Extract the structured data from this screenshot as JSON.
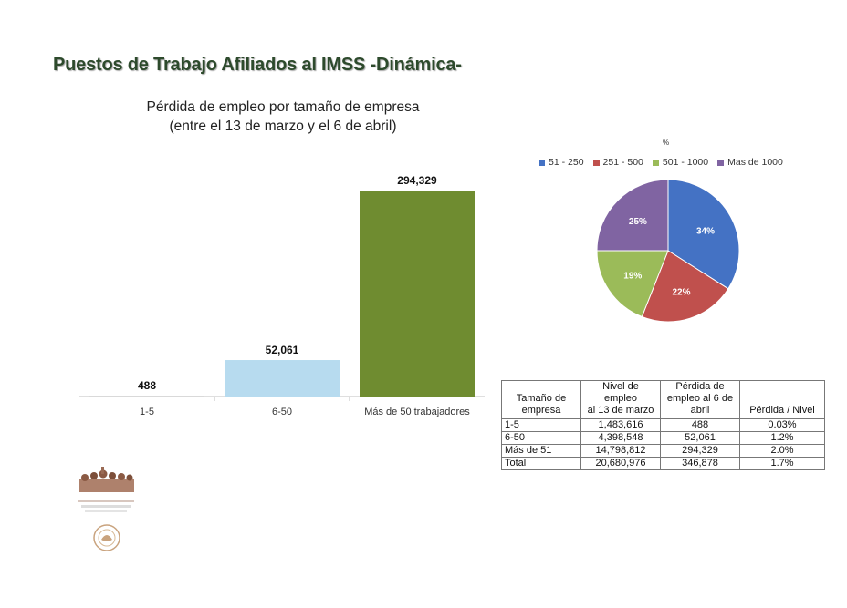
{
  "page": {
    "title": "Puestos de Trabajo Afiliados al IMSS -Dinámica-"
  },
  "chart_data": [
    {
      "type": "bar",
      "title_line1": "Pérdida de empleo por tamaño de empresa",
      "title_line2": "(entre el 13 de marzo y el 6 de abril)",
      "categories": [
        "1-5",
        "6-50",
        "Más de 50 trabajadores"
      ],
      "values": [
        488,
        52061,
        294329
      ],
      "value_labels": [
        "488",
        "52,061",
        "294,329"
      ],
      "colors": [
        "#d9d9d9",
        "#b7dbef",
        "#6f8c30"
      ],
      "xlabel": "",
      "ylabel": "",
      "ylim": [
        0,
        294329
      ],
      "grid": false
    },
    {
      "type": "pie",
      "title": "%",
      "labels": [
        "51 - 250",
        "251 - 500",
        "501 - 1000",
        "Mas de 1000"
      ],
      "values": [
        34,
        22,
        19,
        25
      ],
      "value_labels": [
        "34%",
        "22%",
        "19%",
        "25%"
      ],
      "colors": [
        "#4472c4",
        "#c0504d",
        "#9bbb59",
        "#8064a2"
      ],
      "legend_position": "top"
    }
  ],
  "table": {
    "headers": [
      "Tamaño de empresa",
      "Nivel de empleo al 13 de marzo",
      "Pérdida de empleo al 6 de abril",
      "Pérdida / Nivel"
    ],
    "header_lines": [
      [
        "Tamaño de",
        "empresa"
      ],
      [
        "Nivel de",
        "empleo",
        "al 13 de marzo"
      ],
      [
        "Pérdida de",
        "empleo al 6 de",
        "abril"
      ],
      [
        "Pérdida / Nivel"
      ]
    ],
    "rows": [
      [
        "1-5",
        "1,483,616",
        "488",
        "0.03%"
      ],
      [
        "6-50",
        "4,398,548",
        "52,061",
        "1.2%"
      ],
      [
        "Más de 51",
        "14,798,812",
        "294,329",
        "2.0%"
      ],
      [
        "Total",
        "20,680,976",
        "346,878",
        "1.7%"
      ]
    ]
  }
}
